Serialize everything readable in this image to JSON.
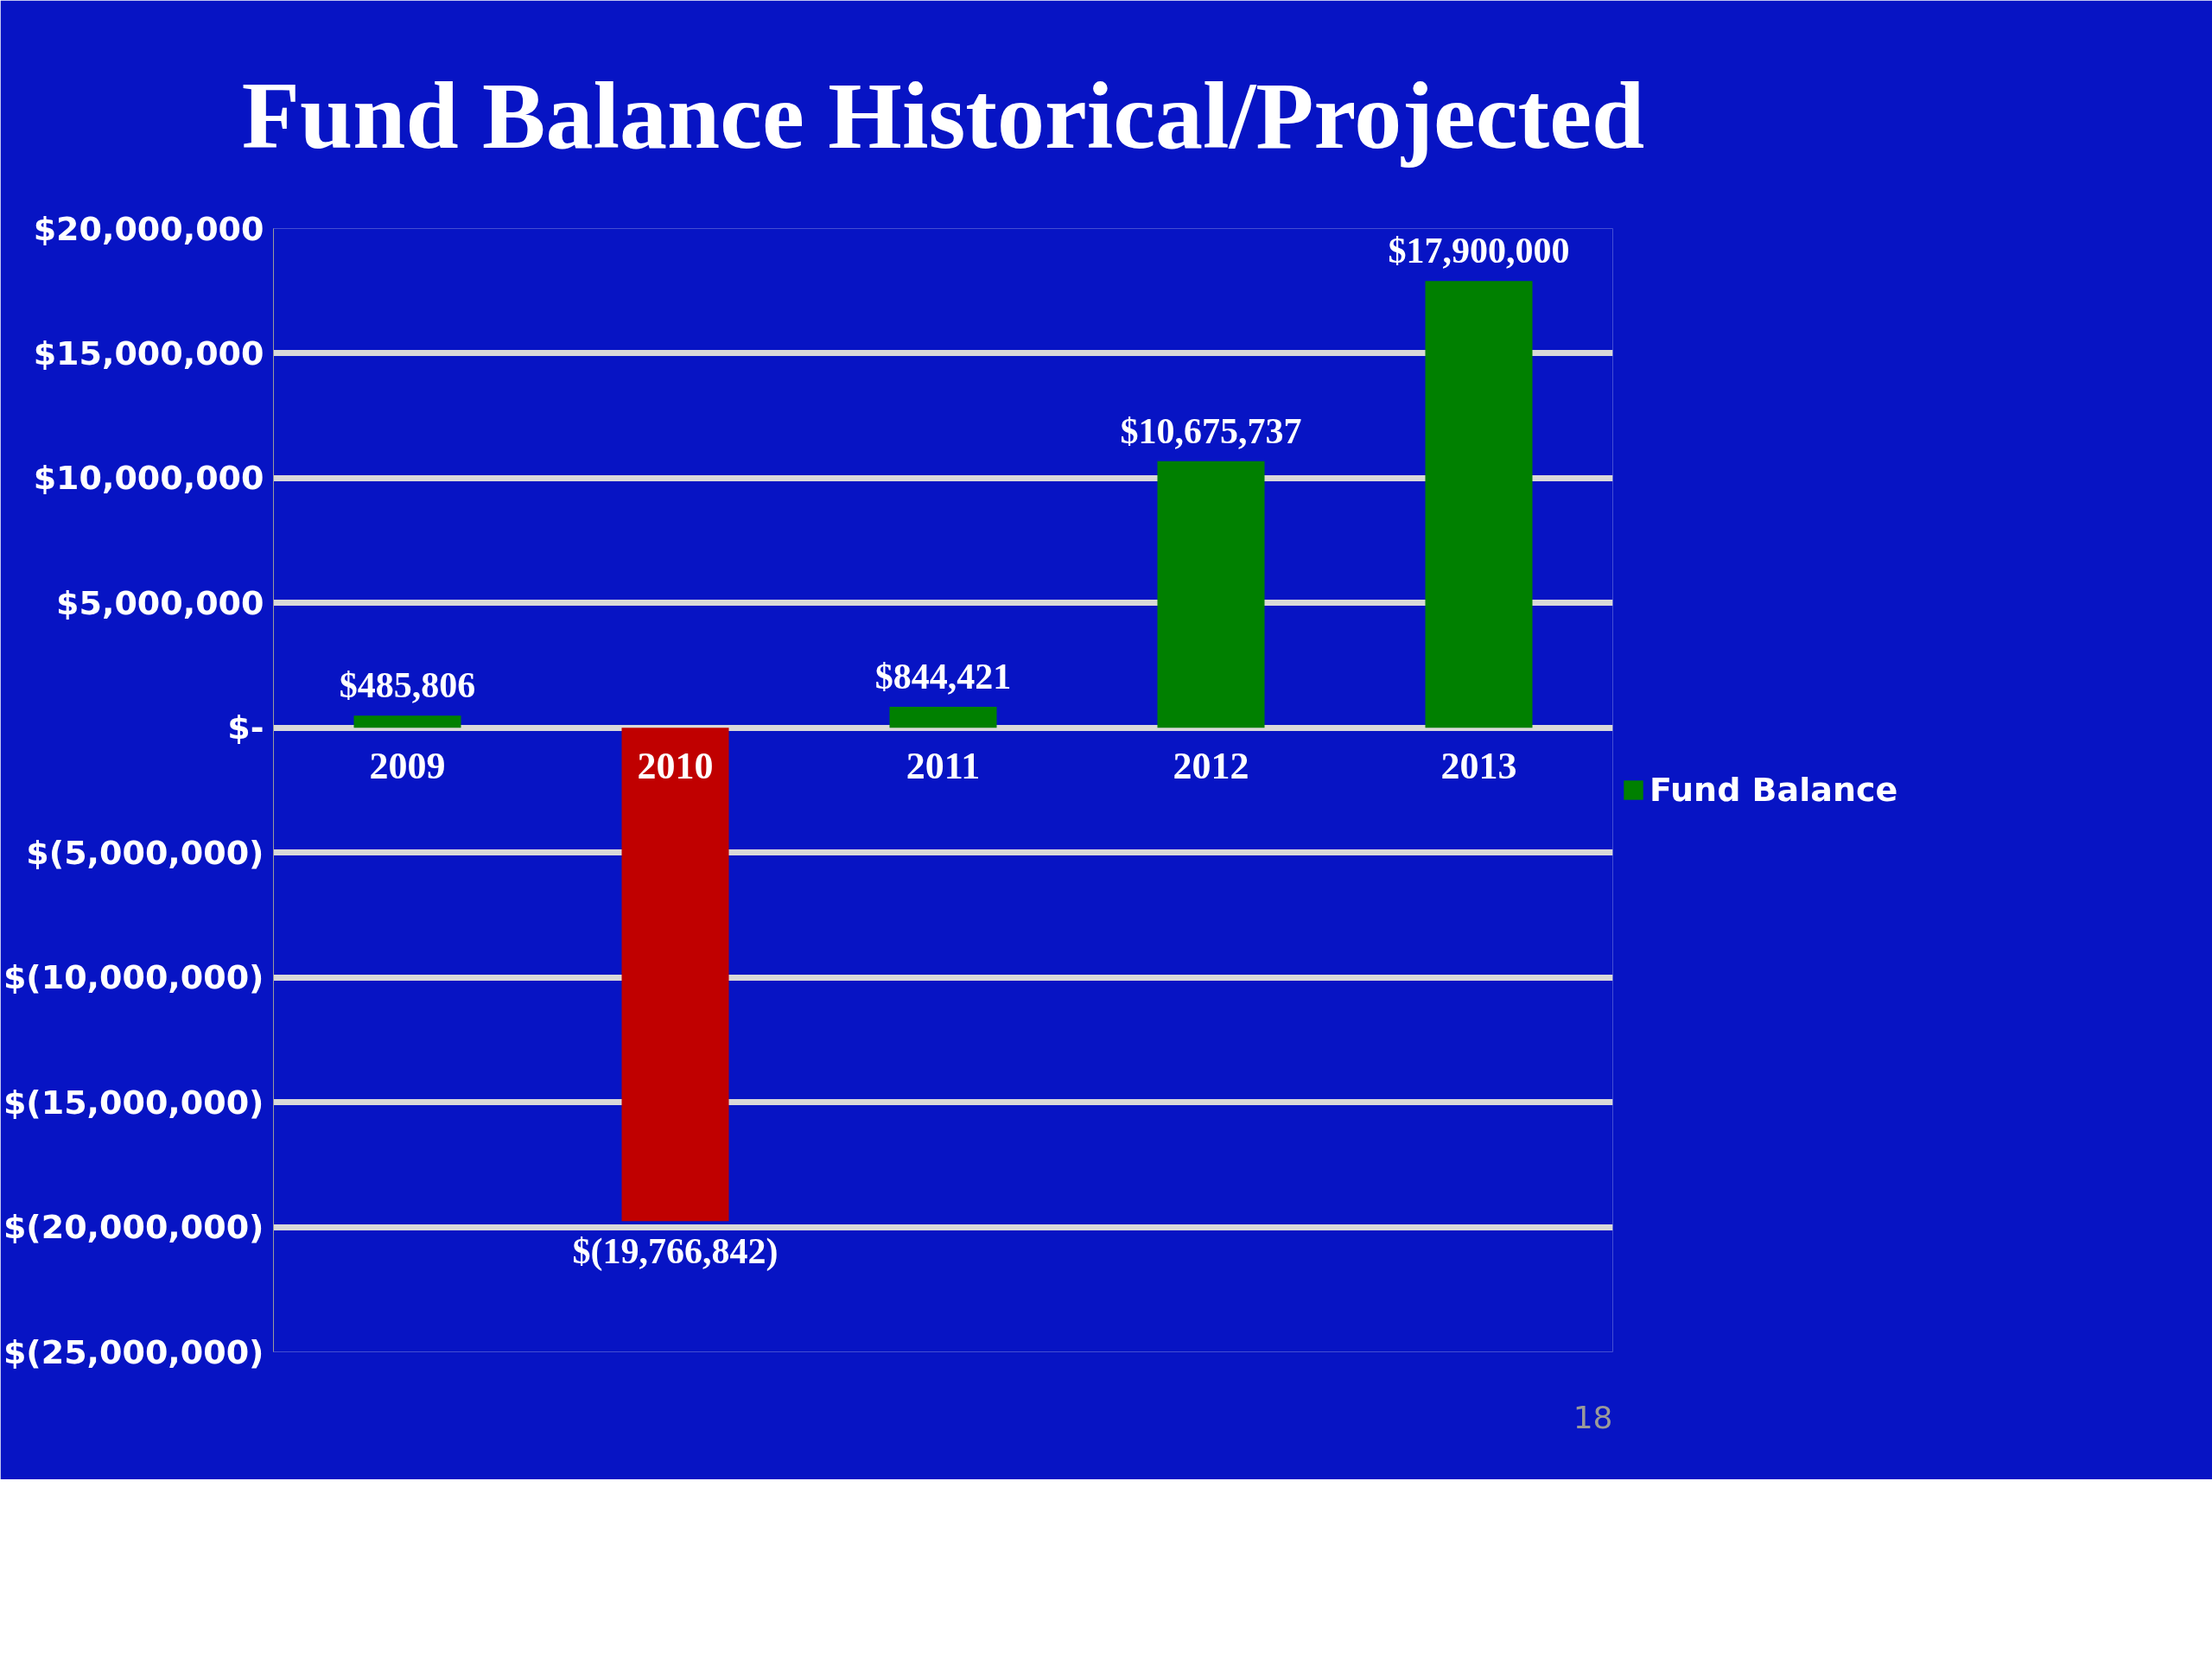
{
  "chart_data": {
    "type": "bar",
    "title": "Fund Balance Historical/Projected",
    "categories": [
      "2009",
      "2010",
      "2011",
      "2012",
      "2013"
    ],
    "series": [
      {
        "name": "Fund Balance",
        "values": [
          485806,
          -19766842,
          844421,
          10675737,
          17900000
        ],
        "colors": [
          "#008000",
          "#c00000",
          "#008000",
          "#008000",
          "#008000"
        ],
        "value_labels": [
          "$485,806",
          "$(19,766,842)",
          "$844,421",
          "$10,675,737",
          "$17,900,000"
        ]
      }
    ],
    "ylim": [
      -25000000,
      20000000
    ],
    "yticks": [
      {
        "value": 20000000,
        "label": "$20,000,000"
      },
      {
        "value": 15000000,
        "label": "$15,000,000"
      },
      {
        "value": 10000000,
        "label": "$10,000,000"
      },
      {
        "value": 5000000,
        "label": "$5,000,000"
      },
      {
        "value": 0,
        "label": "$-"
      },
      {
        "value": -5000000,
        "label": "$(5,000,000)"
      },
      {
        "value": -10000000,
        "label": "$(10,000,000)"
      },
      {
        "value": -15000000,
        "label": "$(15,000,000)"
      },
      {
        "value": -20000000,
        "label": "$(20,000,000)"
      },
      {
        "value": -25000000,
        "label": "$(25,000,000)"
      }
    ],
    "grid": "y",
    "legend": "right",
    "annotations": [
      "18"
    ]
  }
}
